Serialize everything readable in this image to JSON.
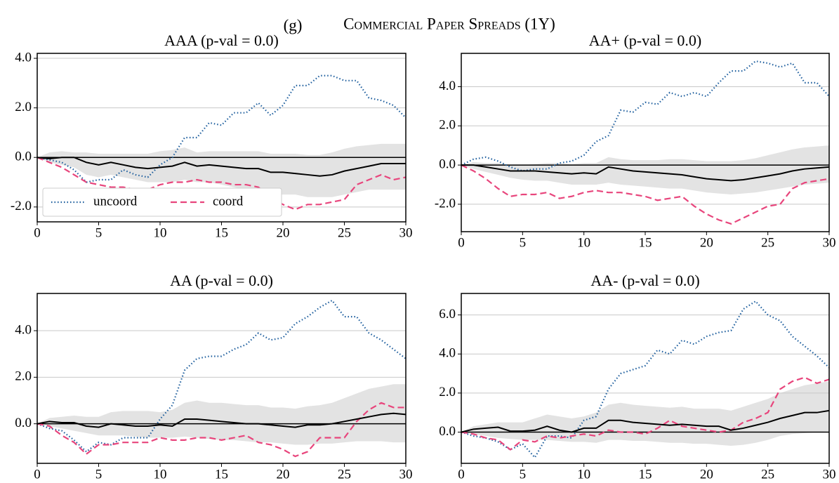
{
  "figure": {
    "label": "(g)",
    "title": "Commercial Paper Spreads (1Y)"
  },
  "chart_data": [
    {
      "type": "line",
      "title": "AAA (p-val = 0.0)",
      "legend": "lower left",
      "grid": true,
      "axhline": 0,
      "x": [
        0,
        1,
        2,
        3,
        4,
        5,
        6,
        7,
        8,
        9,
        10,
        11,
        12,
        13,
        14,
        15,
        16,
        17,
        18,
        19,
        20,
        21,
        22,
        23,
        24,
        25,
        26,
        27,
        28,
        29,
        30
      ],
      "xlim": [
        0,
        30
      ],
      "xticks": [
        0,
        5,
        10,
        15,
        20,
        25,
        30
      ],
      "ylim": [
        -2.6,
        4.2
      ],
      "yticks": [
        {
          "value": -2,
          "label": "-2.0"
        },
        {
          "value": 0,
          "label": "0.0"
        },
        {
          "value": 2,
          "label": "2.0"
        },
        {
          "value": 4,
          "label": "4.0"
        }
      ],
      "band": {
        "color": "#e3e3e3",
        "lower": [
          0,
          -0.2,
          -0.3,
          -0.4,
          -0.7,
          -0.8,
          -0.7,
          -0.8,
          -0.9,
          -1.0,
          -1.0,
          -1.0,
          -0.9,
          -1.0,
          -1.0,
          -1.1,
          -1.2,
          -1.3,
          -1.4,
          -1.5,
          -1.5,
          -1.5,
          -1.6,
          -1.6,
          -1.6,
          -1.5,
          -1.4,
          -1.3,
          -1.3,
          -1.3,
          -1.3
        ],
        "upper": [
          0,
          0.2,
          0.25,
          0.2,
          0.2,
          0.15,
          0.15,
          0.15,
          0.15,
          0.15,
          0.25,
          0.3,
          0.4,
          0.2,
          0.25,
          0.25,
          0.25,
          0.25,
          0.25,
          0.15,
          0.15,
          0.15,
          0.1,
          0.1,
          0.2,
          0.35,
          0.45,
          0.5,
          0.55,
          0.55,
          0.55
        ]
      },
      "series": [
        {
          "name": "uncoord",
          "color": "#1f5f9e",
          "style": "dotted",
          "values": [
            0,
            -0.1,
            -0.2,
            -0.5,
            -1.0,
            -0.9,
            -0.9,
            -0.5,
            -0.7,
            -0.8,
            -0.3,
            0.0,
            0.8,
            0.8,
            1.4,
            1.3,
            1.8,
            1.8,
            2.2,
            1.7,
            2.1,
            2.9,
            2.9,
            3.3,
            3.3,
            3.1,
            3.1,
            2.4,
            2.3,
            2.1,
            1.6
          ]
        },
        {
          "name": "coord",
          "color": "#e8457c",
          "style": "dashed",
          "values": [
            0,
            -0.2,
            -0.4,
            -0.7,
            -1.0,
            -1.1,
            -1.2,
            -1.2,
            -1.3,
            -1.3,
            -1.1,
            -1.0,
            -1.0,
            -0.9,
            -1.0,
            -1.0,
            -1.1,
            -1.1,
            -1.2,
            -1.6,
            -1.9,
            -2.1,
            -1.9,
            -1.9,
            -1.8,
            -1.7,
            -1.1,
            -0.9,
            -0.7,
            -0.9,
            -0.8
          ]
        },
        {
          "color": "#000000",
          "style": "solid",
          "values": [
            0,
            -0.05,
            0,
            0,
            -0.2,
            -0.3,
            -0.2,
            -0.3,
            -0.4,
            -0.45,
            -0.4,
            -0.35,
            -0.2,
            -0.35,
            -0.3,
            -0.35,
            -0.4,
            -0.45,
            -0.45,
            -0.6,
            -0.6,
            -0.65,
            -0.7,
            -0.75,
            -0.7,
            -0.55,
            -0.45,
            -0.35,
            -0.25,
            -0.25,
            -0.25
          ]
        }
      ]
    },
    {
      "type": "line",
      "title": "AA+ (p-val = 0.0)",
      "grid": true,
      "axhline": 0,
      "x": [
        0,
        1,
        2,
        3,
        4,
        5,
        6,
        7,
        8,
        9,
        10,
        11,
        12,
        13,
        14,
        15,
        16,
        17,
        18,
        19,
        20,
        21,
        22,
        23,
        24,
        25,
        26,
        27,
        28,
        29,
        30
      ],
      "xlim": [
        0,
        30
      ],
      "xticks": [
        0,
        5,
        10,
        15,
        20,
        25,
        30
      ],
      "ylim": [
        -3.4,
        5.7
      ],
      "yticks": [
        {
          "value": -2,
          "label": "-2.0"
        },
        {
          "value": 0,
          "label": "0.0"
        },
        {
          "value": 2,
          "label": "2.0"
        },
        {
          "value": 4,
          "label": "4.0"
        }
      ],
      "band": {
        "color": "#e3e3e3",
        "lower": [
          0,
          -0.2,
          -0.35,
          -0.5,
          -0.65,
          -0.75,
          -0.8,
          -0.8,
          -0.9,
          -1.0,
          -1.0,
          -1.0,
          -0.9,
          -1.0,
          -1.05,
          -1.1,
          -1.15,
          -1.2,
          -1.2,
          -1.3,
          -1.4,
          -1.45,
          -1.5,
          -1.45,
          -1.4,
          -1.3,
          -1.2,
          -1.1,
          -1.0,
          -0.95,
          -0.9
        ],
        "upper": [
          0,
          0.15,
          0.1,
          0.1,
          0.0,
          0.0,
          0.05,
          0.1,
          0.1,
          0.05,
          0.1,
          0.1,
          0.4,
          0.3,
          0.25,
          0.25,
          0.25,
          0.3,
          0.3,
          0.25,
          0.2,
          0.2,
          0.2,
          0.25,
          0.35,
          0.5,
          0.65,
          0.8,
          0.9,
          0.95,
          1.0
        ]
      },
      "series": [
        {
          "color": "#1f5f9e",
          "style": "dotted",
          "values": [
            0,
            0.3,
            0.4,
            0.2,
            -0.1,
            -0.3,
            -0.2,
            -0.2,
            0.1,
            0.2,
            0.5,
            1.2,
            1.5,
            2.8,
            2.7,
            3.2,
            3.1,
            3.7,
            3.5,
            3.7,
            3.5,
            4.2,
            4.8,
            4.8,
            5.3,
            5.2,
            5.0,
            5.2,
            4.2,
            4.2,
            3.5
          ]
        },
        {
          "color": "#e8457c",
          "style": "dashed",
          "values": [
            0,
            -0.3,
            -0.7,
            -1.2,
            -1.6,
            -1.5,
            -1.5,
            -1.4,
            -1.7,
            -1.6,
            -1.4,
            -1.3,
            -1.4,
            -1.4,
            -1.5,
            -1.6,
            -1.8,
            -1.7,
            -1.6,
            -2.1,
            -2.5,
            -2.8,
            -3.0,
            -2.7,
            -2.4,
            -2.1,
            -2.0,
            -1.2,
            -0.9,
            -0.8,
            -0.7
          ]
        },
        {
          "color": "#000000",
          "style": "solid",
          "values": [
            0,
            0,
            -0.1,
            -0.2,
            -0.3,
            -0.3,
            -0.3,
            -0.35,
            -0.4,
            -0.45,
            -0.4,
            -0.45,
            -0.1,
            -0.2,
            -0.3,
            -0.35,
            -0.4,
            -0.45,
            -0.5,
            -0.6,
            -0.7,
            -0.75,
            -0.8,
            -0.75,
            -0.65,
            -0.55,
            -0.45,
            -0.3,
            -0.2,
            -0.15,
            -0.1
          ]
        }
      ]
    },
    {
      "type": "line",
      "title": "AA (p-val = 0.0)",
      "grid": true,
      "axhline": 0,
      "x": [
        0,
        1,
        2,
        3,
        4,
        5,
        6,
        7,
        8,
        9,
        10,
        11,
        12,
        13,
        14,
        15,
        16,
        17,
        18,
        19,
        20,
        21,
        22,
        23,
        24,
        25,
        26,
        27,
        28,
        29,
        30
      ],
      "xlim": [
        0,
        30
      ],
      "xticks": [
        0,
        5,
        10,
        15,
        20,
        25,
        30
      ],
      "ylim": [
        -1.7,
        5.6
      ],
      "yticks": [
        {
          "value": 0,
          "label": "0.0"
        },
        {
          "value": 2,
          "label": "2.0"
        },
        {
          "value": 4,
          "label": "4.0"
        }
      ],
      "band": {
        "color": "#e3e3e3",
        "lower": [
          0,
          -0.1,
          -0.2,
          -0.3,
          -0.4,
          -0.5,
          -0.5,
          -0.5,
          -0.55,
          -0.6,
          -0.6,
          -0.6,
          -0.55,
          -0.6,
          -0.65,
          -0.7,
          -0.7,
          -0.75,
          -0.8,
          -0.8,
          -0.85,
          -0.9,
          -0.9,
          -0.85,
          -0.85,
          -0.8,
          -0.75,
          -0.75,
          -0.75,
          -0.8,
          -0.8
        ],
        "upper": [
          0,
          0.25,
          0.3,
          0.35,
          0.3,
          0.3,
          0.5,
          0.55,
          0.55,
          0.55,
          0.5,
          0.6,
          0.9,
          1.0,
          0.9,
          0.9,
          0.85,
          0.8,
          0.8,
          0.7,
          0.7,
          0.65,
          0.75,
          0.8,
          0.9,
          1.1,
          1.3,
          1.5,
          1.6,
          1.7,
          1.7
        ]
      },
      "series": [
        {
          "color": "#1f5f9e",
          "style": "dotted",
          "values": [
            0,
            -0.2,
            -0.3,
            -0.7,
            -1.2,
            -0.8,
            -0.9,
            -0.6,
            -0.6,
            -0.6,
            0.2,
            0.8,
            2.3,
            2.8,
            2.9,
            2.9,
            3.2,
            3.4,
            3.9,
            3.6,
            3.7,
            4.3,
            4.6,
            5.0,
            5.3,
            4.6,
            4.6,
            3.9,
            3.6,
            3.2,
            2.8
          ]
        },
        {
          "color": "#e8457c",
          "style": "dashed",
          "values": [
            0,
            -0.1,
            -0.5,
            -0.8,
            -1.3,
            -0.9,
            -0.9,
            -0.8,
            -0.8,
            -0.8,
            -0.6,
            -0.7,
            -0.7,
            -0.6,
            -0.6,
            -0.7,
            -0.6,
            -0.5,
            -0.8,
            -0.9,
            -1.1,
            -1.4,
            -1.2,
            -0.6,
            -0.6,
            -0.6,
            0.1,
            0.6,
            0.9,
            0.7,
            0.7
          ]
        },
        {
          "color": "#000000",
          "style": "solid",
          "values": [
            0,
            0.1,
            0.05,
            0.05,
            -0.1,
            -0.15,
            0,
            -0.05,
            -0.1,
            -0.1,
            -0.05,
            -0.1,
            0.2,
            0.2,
            0.15,
            0.1,
            0.05,
            0,
            0,
            -0.05,
            -0.1,
            -0.15,
            -0.05,
            -0.05,
            0,
            0.1,
            0.2,
            0.3,
            0.4,
            0.45,
            0.4
          ]
        }
      ]
    },
    {
      "type": "line",
      "title": "AA- (p-val = 0.0)",
      "grid": true,
      "axhline": 0,
      "x": [
        0,
        1,
        2,
        3,
        4,
        5,
        6,
        7,
        8,
        9,
        10,
        11,
        12,
        13,
        14,
        15,
        16,
        17,
        18,
        19,
        20,
        21,
        22,
        23,
        24,
        25,
        26,
        27,
        28,
        29,
        30
      ],
      "xlim": [
        0,
        30
      ],
      "xticks": [
        0,
        5,
        10,
        15,
        20,
        25,
        30
      ],
      "ylim": [
        -1.6,
        7.1
      ],
      "yticks": [
        {
          "value": 0,
          "label": "0.0"
        },
        {
          "value": 2,
          "label": "2.0"
        },
        {
          "value": 4,
          "label": "4.0"
        },
        {
          "value": 6,
          "label": "6.0"
        }
      ],
      "band": {
        "color": "#e3e3e3",
        "lower": [
          0,
          -0.1,
          -0.2,
          -0.3,
          -0.35,
          -0.4,
          -0.4,
          -0.4,
          -0.45,
          -0.5,
          -0.5,
          -0.55,
          -0.4,
          -0.4,
          -0.45,
          -0.45,
          -0.5,
          -0.55,
          -0.55,
          -0.6,
          -0.6,
          -0.65,
          -0.7,
          -0.65,
          -0.55,
          -0.4,
          -0.2,
          -0.1,
          -0.05,
          0,
          0.05
        ],
        "upper": [
          0,
          0.3,
          0.4,
          0.5,
          0.5,
          0.5,
          0.7,
          0.9,
          0.8,
          0.7,
          0.8,
          1.0,
          1.4,
          1.5,
          1.4,
          1.35,
          1.3,
          1.25,
          1.3,
          1.2,
          1.2,
          1.2,
          1.1,
          1.3,
          1.5,
          1.7,
          2.0,
          2.2,
          2.4,
          2.5,
          2.6
        ]
      },
      "series": [
        {
          "color": "#1f5f9e",
          "style": "dotted",
          "values": [
            0,
            -0.2,
            -0.3,
            -0.5,
            -0.9,
            -0.6,
            -1.3,
            -0.2,
            -0.2,
            -0.3,
            0.6,
            0.8,
            2.2,
            3.0,
            3.2,
            3.4,
            4.2,
            4.0,
            4.7,
            4.5,
            4.9,
            5.1,
            5.2,
            6.3,
            6.7,
            6.0,
            5.7,
            4.9,
            4.4,
            3.9,
            3.3
          ]
        },
        {
          "color": "#e8457c",
          "style": "dashed",
          "values": [
            0,
            -0.1,
            -0.3,
            -0.4,
            -0.9,
            -0.4,
            -0.5,
            -0.2,
            -0.3,
            -0.2,
            -0.1,
            -0.2,
            0.1,
            0.0,
            0.0,
            -0.1,
            0.2,
            0.6,
            0.3,
            0.2,
            0.1,
            0.0,
            0.1,
            0.5,
            0.7,
            1.0,
            2.2,
            2.6,
            2.8,
            2.5,
            2.7
          ]
        },
        {
          "color": "#000000",
          "style": "solid",
          "values": [
            0,
            0.15,
            0.2,
            0.25,
            0.05,
            0.05,
            0.1,
            0.3,
            0.1,
            0,
            0.2,
            0.2,
            0.6,
            0.6,
            0.5,
            0.45,
            0.4,
            0.35,
            0.4,
            0.35,
            0.3,
            0.3,
            0.1,
            0.2,
            0.35,
            0.5,
            0.7,
            0.85,
            1.0,
            1.0,
            1.1
          ]
        }
      ]
    }
  ]
}
